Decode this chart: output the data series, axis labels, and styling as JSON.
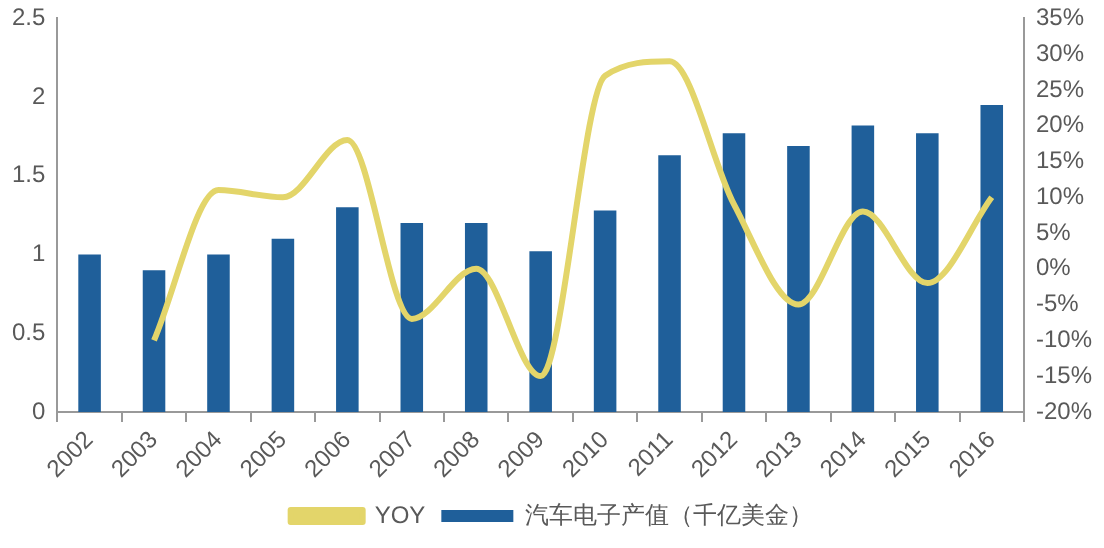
{
  "chart_data": {
    "type": "bar",
    "categories": [
      "2002",
      "2003",
      "2004",
      "2005",
      "2006",
      "2007",
      "2008",
      "2009",
      "2010",
      "2011",
      "2012",
      "2013",
      "2014",
      "2015",
      "2016"
    ],
    "series": [
      {
        "name": "汽车电子产值（千亿美金）",
        "color": "#1f5f9a",
        "values": [
          1.0,
          0.9,
          1.0,
          1.1,
          1.3,
          1.2,
          1.2,
          1.02,
          1.28,
          1.63,
          1.77,
          1.69,
          1.82,
          1.77,
          1.95
        ]
      },
      {
        "name": "YOY",
        "type": "line",
        "axis": "y2",
        "color": "#e3d56a",
        "values": [
          null,
          -10,
          11,
          10,
          18,
          -7,
          0,
          -15,
          27,
          29,
          9,
          -5,
          8,
          -2,
          10
        ]
      }
    ],
    "ylim": [
      0,
      2.5
    ],
    "yticks": [
      0,
      0.5,
      1,
      1.5,
      2,
      2.5
    ],
    "y2lim": [
      -20,
      35
    ],
    "y2ticks": [
      {
        "value": -20,
        "label": "-20%"
      },
      {
        "value": -15,
        "label": "-15%"
      },
      {
        "value": -10,
        "label": "-10%"
      },
      {
        "value": -5,
        "label": "-5%"
      },
      {
        "value": 0,
        "label": "0%"
      },
      {
        "value": 5,
        "label": "5%"
      },
      {
        "value": 10,
        "label": "10%"
      },
      {
        "value": 15,
        "label": "15%"
      },
      {
        "value": 20,
        "label": "20%"
      },
      {
        "value": 25,
        "label": "25%"
      },
      {
        "value": 30,
        "label": "30%"
      },
      {
        "value": 35,
        "label": "35%"
      }
    ],
    "grid": false,
    "legend": "bottom",
    "marker": "none"
  }
}
